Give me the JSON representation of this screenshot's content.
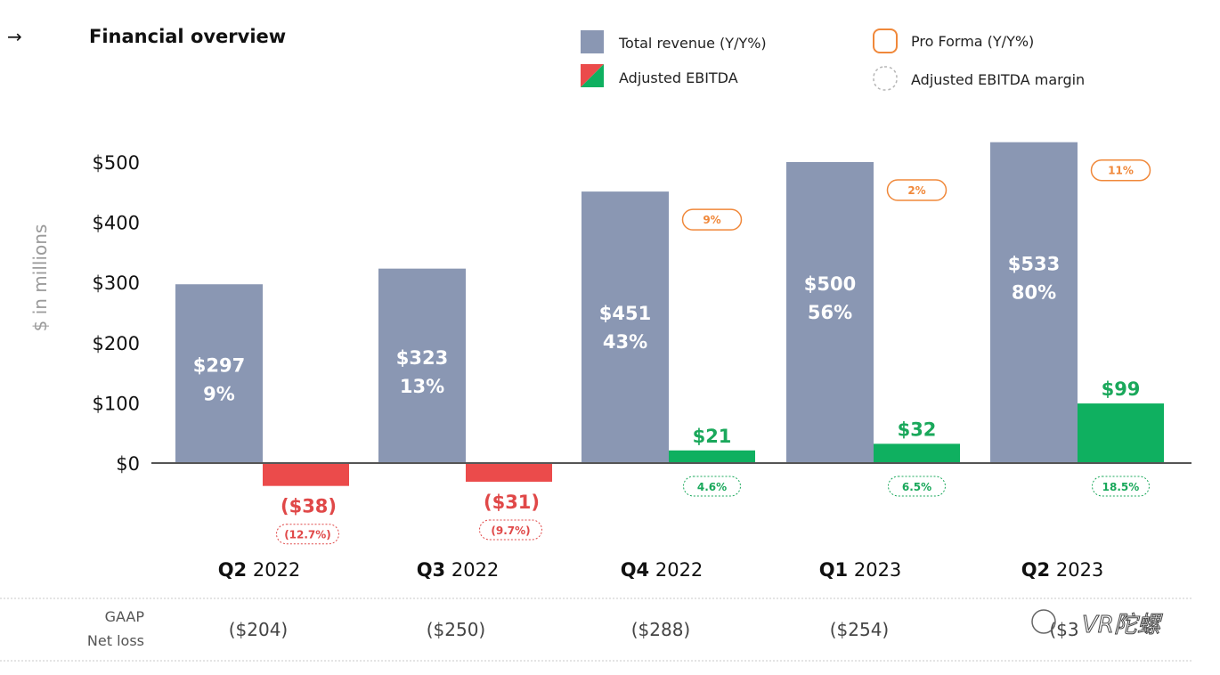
{
  "header": {
    "arrow": "→",
    "title": "Financial overview"
  },
  "legend": [
    {
      "label": "Total revenue (Y/Y%)",
      "swatch": "revenue"
    },
    {
      "label": "Pro Forma (Y/Y%)",
      "swatch": "proforma"
    },
    {
      "label": "Adjusted EBITDA",
      "swatch": "ebitda"
    },
    {
      "label": "Adjusted EBITDA margin",
      "swatch": "margin"
    }
  ],
  "colors": {
    "revenue": "#8a97b3",
    "ebitda_pos": "#0fb060",
    "ebitda_neg": "#eb4b4b",
    "proforma": "#f0883a",
    "margin_pos": "#1aa85b",
    "margin_neg": "#e04848",
    "axis": "#555555"
  },
  "chart_data": {
    "type": "bar",
    "ylabel": "$ in millions",
    "ylim": [
      0,
      500
    ],
    "yticks": [
      "$0",
      "$100",
      "$200",
      "$300",
      "$400",
      "$500"
    ],
    "yticks_values": [
      0,
      100,
      200,
      300,
      400,
      500
    ],
    "categories": [
      {
        "bold": "Q2",
        "rest": " 2022"
      },
      {
        "bold": "Q3",
        "rest": " 2022"
      },
      {
        "bold": "Q4",
        "rest": " 2022"
      },
      {
        "bold": "Q1",
        "rest": " 2023"
      },
      {
        "bold": "Q2",
        "rest": " 2023"
      }
    ],
    "series": [
      {
        "name": "Total revenue (Y/Y%)",
        "values": [
          297,
          323,
          451,
          500,
          533
        ],
        "value_labels": [
          "$297",
          "$323",
          "$451",
          "$500",
          "$533"
        ],
        "yoy": [
          "9%",
          "13%",
          "43%",
          "56%",
          "80%"
        ]
      },
      {
        "name": "Adjusted EBITDA",
        "values": [
          -38,
          -31,
          21,
          32,
          99
        ],
        "value_labels": [
          "($38)",
          "($31)",
          "$21",
          "$32",
          "$99"
        ],
        "margin": [
          "(12.7%)",
          "(9.7%)",
          "4.6%",
          "6.5%",
          "18.5%"
        ]
      },
      {
        "name": "Pro Forma (Y/Y%)",
        "values": [
          null,
          null,
          9,
          2,
          11
        ],
        "labels": [
          null,
          null,
          "9%",
          "2%",
          "11%"
        ]
      }
    ]
  },
  "gaap": {
    "label_line1": "GAAP",
    "label_line2": "Net loss",
    "values": [
      "($204)",
      "($250)",
      "($288)",
      "($254)",
      "($3"
    ]
  },
  "watermark": "VR陀螺"
}
